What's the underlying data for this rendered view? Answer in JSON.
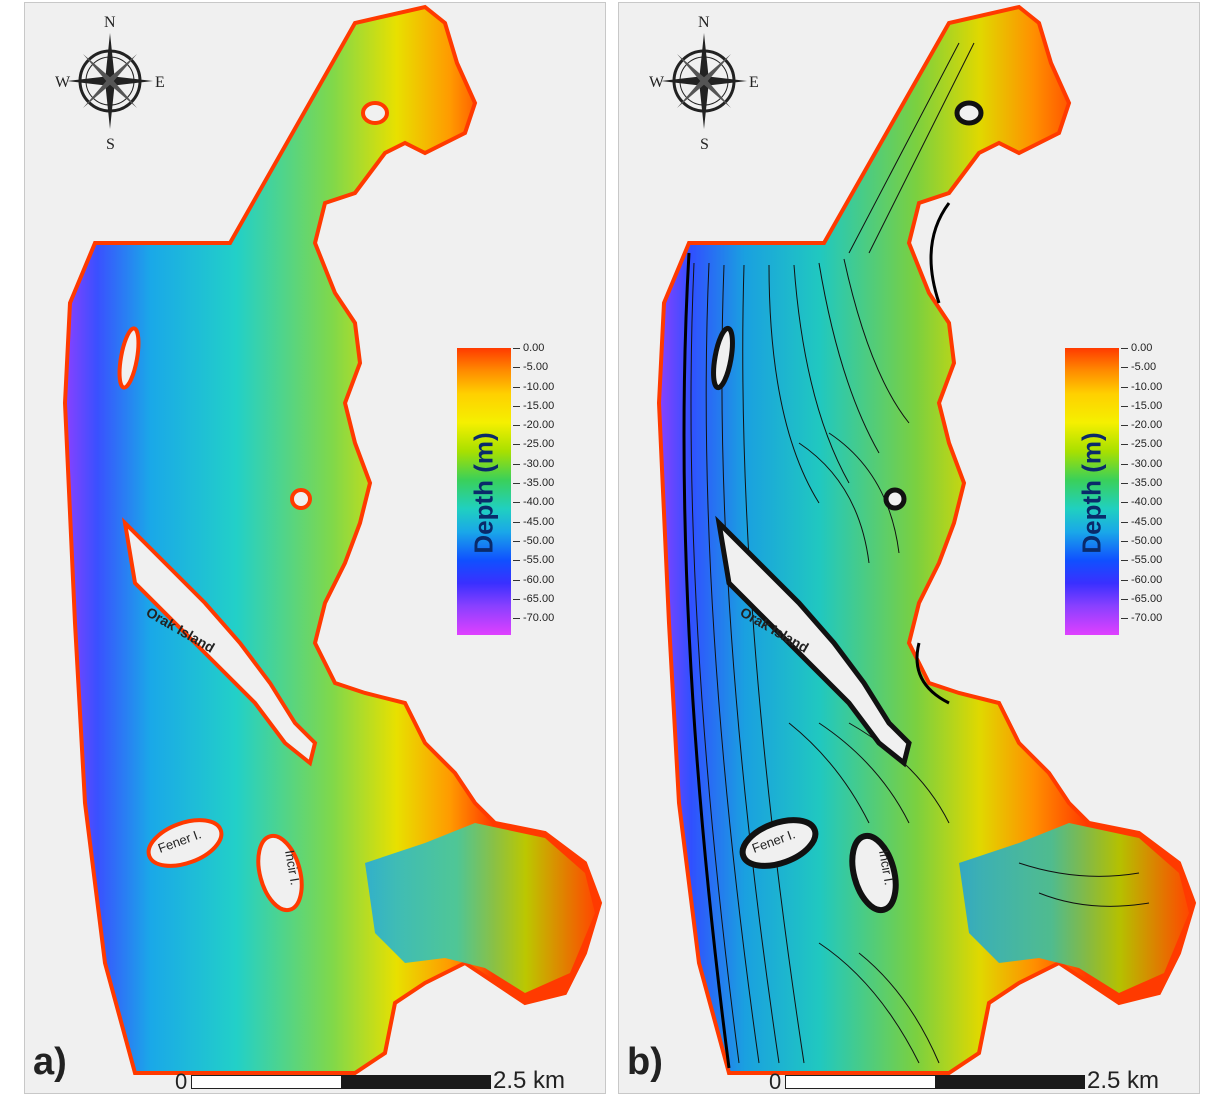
{
  "panels": [
    {
      "label": "a)",
      "scale": {
        "start": "0",
        "end": "2.5 km"
      },
      "legend": {
        "title": "Depth (m)",
        "ticks": [
          "0.00",
          "-5.00",
          "-10.00",
          "-15.00",
          "-20.00",
          "-25.00",
          "-30.00",
          "-35.00",
          "-40.00",
          "-45.00",
          "-50.00",
          "-55.00",
          "-60.00",
          "-65.00",
          "-70.00"
        ]
      },
      "compass": {
        "n": "N",
        "s": "S",
        "e": "E",
        "w": "W"
      },
      "places": {
        "orak": "Orak Island",
        "fener": "Fener I.",
        "incir": "Incir I."
      }
    },
    {
      "label": "b)",
      "scale": {
        "start": "0",
        "end": "2.5 km"
      },
      "legend": {
        "title": "Depth (m)",
        "ticks": [
          "0.00",
          "-5.00",
          "-10.00",
          "-15.00",
          "-20.00",
          "-25.00",
          "-30.00",
          "-35.00",
          "-40.00",
          "-45.00",
          "-50.00",
          "-55.00",
          "-60.00",
          "-65.00",
          "-70.00"
        ]
      },
      "compass": {
        "n": "N",
        "s": "S",
        "e": "E",
        "w": "W"
      },
      "places": {
        "orak": "Orak Island",
        "fener": "Fener I.",
        "incir": "Incir I."
      }
    }
  ],
  "colors": {
    "background": "#f0f0f0",
    "shore": "#ff3a00",
    "deep": "#8a40ff"
  }
}
